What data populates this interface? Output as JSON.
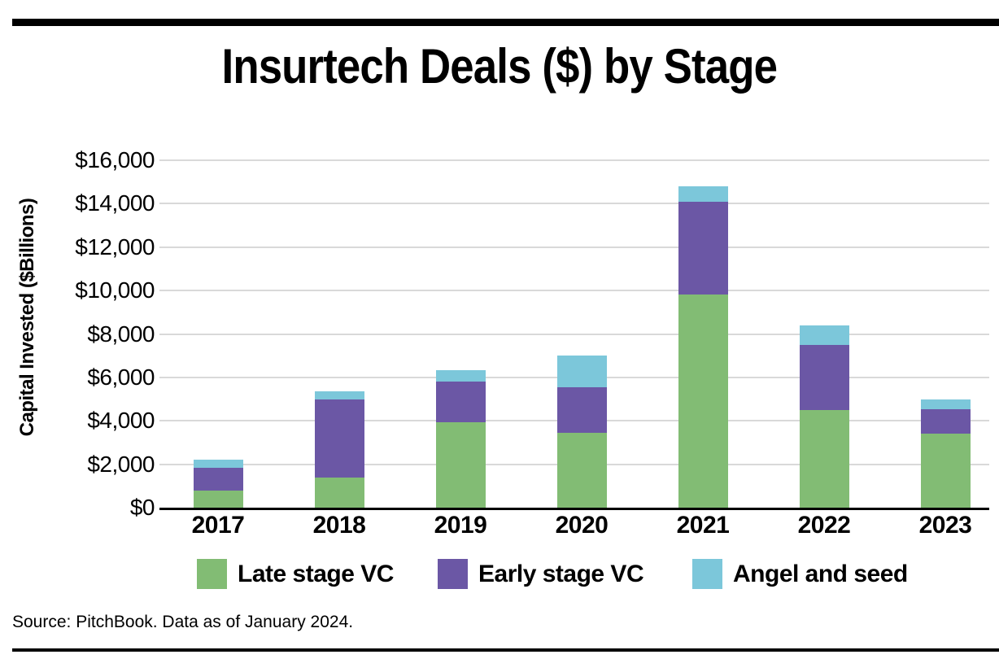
{
  "page": {
    "title": "Insurtech Deals ($) by Stage",
    "source": "Source: PitchBook. Data as of January 2024."
  },
  "chart_data": {
    "type": "bar",
    "stacked": true,
    "title": "Insurtech Deals ($) by Stage",
    "xlabel": "",
    "ylabel": "Capital Invested ($Billions)",
    "ylim": [
      0,
      16000
    ],
    "ytick_interval": 2000,
    "grid": true,
    "legend_position": "bottom",
    "categories": [
      "2017",
      "2018",
      "2019",
      "2020",
      "2021",
      "2022",
      "2023"
    ],
    "series": [
      {
        "name": "Late stage VC",
        "color": "#82BC74",
        "values": [
          800,
          1400,
          3950,
          3450,
          9800,
          4500,
          3400
        ]
      },
      {
        "name": "Early stage VC",
        "color": "#6B57A5",
        "values": [
          1050,
          3600,
          1850,
          2100,
          4300,
          3000,
          1150
        ]
      },
      {
        "name": "Angel and seed",
        "color": "#7CC7DA",
        "values": [
          350,
          350,
          550,
          1450,
          700,
          900,
          450
        ]
      }
    ],
    "stack_totals": [
      2200,
      5350,
      6350,
      7000,
      14800,
      8400,
      5000
    ],
    "yticks": [
      {
        "value": 16000,
        "label": "$16,000"
      },
      {
        "value": 14000,
        "label": "$14,000"
      },
      {
        "value": 12000,
        "label": "$12,000"
      },
      {
        "value": 10000,
        "label": "$10,000"
      },
      {
        "value": 8000,
        "label": "$8,000"
      },
      {
        "value": 6000,
        "label": "$6,000"
      },
      {
        "value": 4000,
        "label": "$4,000"
      },
      {
        "value": 2000,
        "label": "$2,000"
      },
      {
        "value": 0,
        "label": "$0"
      }
    ],
    "colors": {
      "late_stage_vc": "#82BC74",
      "early_stage_vc": "#6B57A5",
      "angel_and_seed": "#7CC7DA",
      "gridline": "#d9d9d9",
      "axis": "#000000"
    }
  }
}
